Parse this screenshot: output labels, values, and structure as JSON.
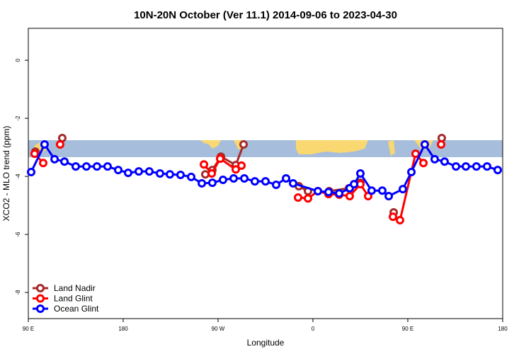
{
  "chart_data": {
    "type": "line",
    "title": "10N-20N October (Ver 11.1)   2014-09-06 to 2023-04-30",
    "x_label": "Longitude",
    "y_label": "XCO2 - MLO trend (ppm)",
    "xlim": [
      90,
      540
    ],
    "xticks": [
      {
        "value": 90,
        "label": "90 E"
      },
      {
        "value": 180,
        "label": "180"
      },
      {
        "value": 270,
        "label": "90 W"
      },
      {
        "value": 360,
        "label": "0"
      },
      {
        "value": 450,
        "label": "90 E"
      },
      {
        "value": 540,
        "label": "180"
      }
    ],
    "ylim": [
      -8.9,
      1.1
    ],
    "yticks": [
      0,
      -2,
      -4,
      -6,
      -8
    ],
    "legend": "bottom-left",
    "series": [
      {
        "name": "Land Nadir",
        "color": "#a52a2a",
        "x": [
          96.7,
          null,
          122.2,
          null,
          257.9,
          264.6,
          272.7,
          286.8,
          294.2,
          null,
          346.6,
          355.3,
          null,
          375.4,
          394.2,
          405.0,
          null,
          436.6,
          null,
          482.2
        ],
        "values": [
          -3.15,
          null,
          -2.68,
          null,
          -3.93,
          -3.78,
          -3.32,
          -3.61,
          -2.9,
          null,
          -4.34,
          -4.51,
          null,
          -4.51,
          -4.41,
          -4.22,
          null,
          -5.24,
          null,
          -2.68
        ]
      },
      {
        "name": "Land Glint",
        "color": "#ff0000",
        "x": [
          96.0,
          104.1,
          null,
          120.2,
          null,
          256.6,
          264.0,
          272.0,
          286.8,
          292.2,
          null,
          345.9,
          355.3,
          364.7,
          374.8,
          384.9,
          394.9,
          405.0,
          412.4,
          null,
          435.9,
          442.6,
          457.4,
          464.8,
          null,
          481.6
        ],
        "values": [
          -3.22,
          -3.54,
          null,
          -2.9,
          null,
          -3.59,
          -3.9,
          -3.39,
          -3.76,
          -3.63,
          null,
          -4.73,
          -4.76,
          -4.51,
          -4.61,
          -4.63,
          -4.68,
          -4.27,
          -4.68,
          null,
          -5.39,
          -5.51,
          -3.22,
          -3.54,
          null,
          -2.9
        ]
      },
      {
        "name": "Ocean Glint",
        "color": "#0000ff",
        "x": [
          92.7,
          105.4,
          114.9,
          124.3,
          135.0,
          145.1,
          155.1,
          165.2,
          175.3,
          184.7,
          194.8,
          204.8,
          214.9,
          224.3,
          234.4,
          244.5,
          254.6,
          264.6,
          274.7,
          284.8,
          294.9,
          304.9,
          315.0,
          325.1,
          334.5,
          341.2,
          364.7,
          374.8,
          384.9,
          394.9,
          399.0,
          405.0,
          415.7,
          425.8,
          431.9,
          445.3,
          453.4,
          466.1,
          475.5,
          484.9,
          495.7,
          505.1,
          515.1,
          525.2,
          535.3
        ],
        "values": [
          -3.85,
          -2.9,
          -3.41,
          -3.49,
          -3.66,
          -3.66,
          -3.66,
          -3.66,
          -3.78,
          -3.88,
          -3.83,
          -3.83,
          -3.9,
          -3.93,
          -3.95,
          -4.02,
          -4.24,
          -4.22,
          -4.12,
          -4.07,
          -4.07,
          -4.17,
          -4.17,
          -4.29,
          -4.07,
          -4.24,
          -4.51,
          -4.54,
          -4.59,
          -4.41,
          -4.27,
          -3.9,
          -4.49,
          -4.49,
          -4.68,
          -4.44,
          -3.85,
          -2.9,
          -3.41,
          -3.49,
          -3.66,
          -3.66,
          -3.66,
          -3.66,
          -3.78
        ]
      }
    ]
  }
}
